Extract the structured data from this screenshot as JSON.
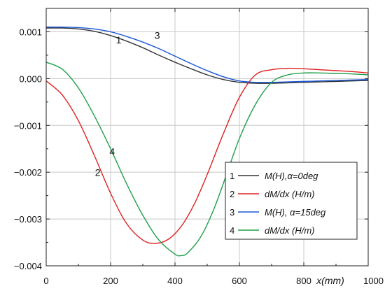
{
  "chart_data": {
    "type": "line",
    "title": "",
    "xlabel": "x(mm)",
    "ylabel": "",
    "xlim": [
      0,
      1000
    ],
    "ylim": [
      -0.004,
      0.0015
    ],
    "x_ticks": [
      0,
      200,
      400,
      600,
      800,
      1000
    ],
    "x_tick_labels": [
      "0",
      "200",
      "400",
      "600",
      "800",
      "1000"
    ],
    "y_ticks": [
      -0.004,
      -0.003,
      -0.002,
      -0.001,
      0.0,
      0.001
    ],
    "y_tick_labels": [
      "−0.004",
      "−0.003",
      "−0.002",
      "−0.001",
      "0.000",
      "0.001"
    ],
    "grid": true,
    "legend_position": "bottom-right",
    "series": [
      {
        "name": "M(H),α=0deg",
        "number": "1",
        "color": "#333333",
        "x": [
          0,
          50,
          100,
          150,
          200,
          250,
          300,
          350,
          400,
          450,
          500,
          550,
          600,
          650,
          700,
          750,
          800,
          850,
          900,
          950,
          1000
        ],
        "y": [
          0.00108,
          0.00108,
          0.00106,
          0.00101,
          0.00092,
          0.0008,
          0.00066,
          0.0005,
          0.00035,
          0.00021,
          8e-05,
          -2e-05,
          -8e-05,
          -0.0001,
          -0.0001,
          -9e-05,
          -8e-05,
          -7e-05,
          -6e-05,
          -5e-05,
          -4e-05
        ]
      },
      {
        "name": "dM/dx (H/m)",
        "number": "2",
        "color": "#e02020",
        "x": [
          0,
          50,
          100,
          150,
          200,
          250,
          300,
          340,
          380,
          420,
          460,
          500,
          550,
          600,
          650,
          700,
          750,
          800,
          850,
          900,
          950,
          1000
        ],
        "y": [
          -5e-05,
          -0.00035,
          -0.0009,
          -0.00165,
          -0.00245,
          -0.0031,
          -0.00345,
          -0.00352,
          -0.00343,
          -0.00315,
          -0.00268,
          -0.00205,
          -0.00118,
          -0.0004,
          8e-05,
          0.00019,
          0.00022,
          0.00021,
          0.00019,
          0.00017,
          0.00015,
          0.00012
        ]
      },
      {
        "name": "M(H), α=15deg",
        "number": "3",
        "color": "#1a56d6",
        "x": [
          0,
          50,
          100,
          150,
          200,
          250,
          300,
          350,
          400,
          450,
          500,
          550,
          600,
          650,
          700,
          750,
          800,
          850,
          900,
          950,
          1000
        ],
        "y": [
          0.0011,
          0.0011,
          0.00109,
          0.00106,
          0.001,
          0.0009,
          0.00078,
          0.00064,
          0.00048,
          0.00032,
          0.00017,
          4e-05,
          -5e-05,
          -8e-05,
          -8e-05,
          -7e-05,
          -6e-05,
          -5e-05,
          -4e-05,
          -3e-05,
          -2e-05
        ]
      },
      {
        "name": "dM/dx (H/m)",
        "number": "4",
        "color": "#1fa04a",
        "x": [
          0,
          50,
          100,
          150,
          200,
          250,
          300,
          350,
          400,
          420,
          440,
          480,
          520,
          560,
          600,
          650,
          700,
          750,
          800,
          850,
          900,
          950,
          1000
        ],
        "y": [
          0.00035,
          0.0002,
          -0.0002,
          -0.0008,
          -0.0015,
          -0.00225,
          -0.00292,
          -0.00345,
          -0.00375,
          -0.00378,
          -0.00372,
          -0.00338,
          -0.0028,
          -0.00205,
          -0.00128,
          -0.00055,
          -8e-05,
          8e-05,
          0.00012,
          0.00012,
          0.00011,
          0.0001,
          8e-05
        ]
      }
    ],
    "annotations": [
      {
        "text": "1",
        "x": 225,
        "y": 0.00075
      },
      {
        "text": "3",
        "x": 345,
        "y": 0.00085
      },
      {
        "text": "2",
        "x": 160,
        "y": -0.00208
      },
      {
        "text": "4",
        "x": 205,
        "y": -0.00163
      }
    ]
  }
}
